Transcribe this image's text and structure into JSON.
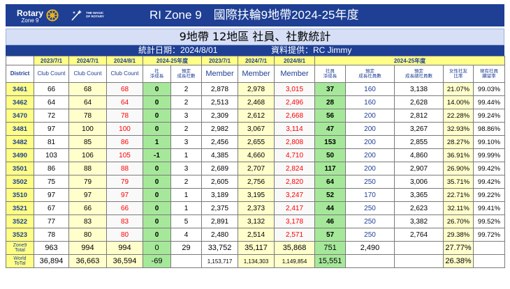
{
  "banner": {
    "rotary": "Rotary",
    "zone": "Zone 9",
    "magic_line1": "THE MAGIC",
    "magic_line2": "OF ROTARY",
    "title": "RI Zone 9　國際扶輪9地帶2024-25年度"
  },
  "subtitle": "9地帶 12地區 社員、社數統計",
  "info": {
    "stat_date": "統計日期：2024/8/01",
    "provider": "資料提供：RC Jimmy"
  },
  "header1": {
    "d1": "2023/7/1",
    "d2": "2024/7/1",
    "d3": "2024/8/1",
    "fy_club": "2024-25年度",
    "m1": "2023/7/1",
    "m2": "2024/7/1",
    "m3": "2024/8/1",
    "fy_member": "2024-25年度"
  },
  "header2": {
    "district": "District",
    "club_count1": "Club Count",
    "club_count2": "Club Count",
    "club_count3": "Club Count",
    "club_net_a": "社",
    "club_net_b": "淨成長",
    "club_target_a": "預定",
    "club_target_b": "成長社數",
    "member1": "Member",
    "member2": "Member",
    "member3": "Member",
    "member_net_a": "社員",
    "member_net_b": "淨成長",
    "member_target_a": "預定",
    "member_target_b": "成長社員數",
    "member_total_target_a": "預定",
    "member_total_target_b": "成長總社員數",
    "female_ratio_a": "女性社友",
    "female_ratio_b": "比率",
    "retention_a": "現有社員",
    "retention_b": "續留率"
  },
  "rows": [
    {
      "district": "3461",
      "c1": "66",
      "c2": "68",
      "c3": "68",
      "cnet": "0",
      "ctarget": "2",
      "m1": "2,878",
      "m2": "2,978",
      "m3": "3,015",
      "mnet": "37",
      "mtarget": "160",
      "mtotal": "3,138",
      "female": "21.07%",
      "retention": "99.03%"
    },
    {
      "district": "3462",
      "c1": "64",
      "c2": "64",
      "c3": "64",
      "cnet": "0",
      "ctarget": "2",
      "m1": "2,513",
      "m2": "2,468",
      "m3": "2,496",
      "mnet": "28",
      "mtarget": "160",
      "mtotal": "2,628",
      "female": "14.00%",
      "retention": "99.44%"
    },
    {
      "district": "3470",
      "c1": "72",
      "c2": "78",
      "c3": "78",
      "cnet": "0",
      "ctarget": "3",
      "m1": "2,309",
      "m2": "2,612",
      "m3": "2,668",
      "mnet": "56",
      "mtarget": "200",
      "mtotal": "2,812",
      "female": "22.28%",
      "retention": "99.24%"
    },
    {
      "district": "3481",
      "c1": "97",
      "c2": "100",
      "c3": "100",
      "cnet": "0",
      "ctarget": "2",
      "m1": "2,982",
      "m2": "3,067",
      "m3": "3,114",
      "mnet": "47",
      "mtarget": "200",
      "mtotal": "3,267",
      "female": "32.93%",
      "retention": "98.86%"
    },
    {
      "district": "3482",
      "c1": "81",
      "c2": "85",
      "c3": "86",
      "cnet": "1",
      "ctarget": "3",
      "m1": "2,456",
      "m2": "2,655",
      "m3": "2,808",
      "mnet": "153",
      "mtarget": "200",
      "mtotal": "2,855",
      "female": "28.27%",
      "retention": "99.10%"
    },
    {
      "district": "3490",
      "c1": "103",
      "c2": "106",
      "c3": "105",
      "cnet": "-1",
      "ctarget": "1",
      "m1": "4,385",
      "m2": "4,660",
      "m3": "4,710",
      "mnet": "50",
      "mtarget": "200",
      "mtotal": "4,860",
      "female": "36.91%",
      "retention": "99.99%"
    },
    {
      "district": "3501",
      "c1": "86",
      "c2": "88",
      "c3": "88",
      "cnet": "0",
      "ctarget": "3",
      "m1": "2,689",
      "m2": "2,707",
      "m3": "2,824",
      "mnet": "117",
      "mtarget": "200",
      "mtotal": "2,907",
      "female": "26.90%",
      "retention": "99.42%"
    },
    {
      "district": "3502",
      "c1": "75",
      "c2": "79",
      "c3": "79",
      "cnet": "0",
      "ctarget": "2",
      "m1": "2,605",
      "m2": "2,756",
      "m3": "2,820",
      "mnet": "64",
      "mtarget": "250",
      "mtotal": "3,006",
      "female": "35.71%",
      "retention": "99.42%"
    },
    {
      "district": "3510",
      "c1": "97",
      "c2": "97",
      "c3": "97",
      "cnet": "0",
      "ctarget": "1",
      "m1": "3,189",
      "m2": "3,195",
      "m3": "3,247",
      "mnet": "52",
      "mtarget": "170",
      "mtotal": "3,365",
      "female": "22.71%",
      "retention": "99.22%"
    },
    {
      "district": "3521",
      "c1": "67",
      "c2": "66",
      "c3": "66",
      "cnet": "0",
      "ctarget": "1",
      "m1": "2,375",
      "m2": "2,373",
      "m3": "2,417",
      "mnet": "44",
      "mtarget": "250",
      "mtotal": "2,623",
      "female": "32.11%",
      "retention": "99.41%"
    },
    {
      "district": "3522",
      "c1": "77",
      "c2": "83",
      "c3": "83",
      "cnet": "0",
      "ctarget": "5",
      "m1": "2,891",
      "m2": "3,132",
      "m3": "3,178",
      "mnet": "46",
      "mtarget": "250",
      "mtotal": "3,382",
      "female": "26.70%",
      "retention": "99.52%"
    },
    {
      "district": "3523",
      "c1": "78",
      "c2": "80",
      "c3": "80",
      "cnet": "0",
      "ctarget": "4",
      "m1": "2,480",
      "m2": "2,514",
      "m3": "2,571",
      "mnet": "57",
      "mtarget": "250",
      "mtotal": "2,764",
      "female": "29.38%",
      "retention": "99.72%"
    }
  ],
  "zone_total": {
    "label1": "Zone9",
    "label2": "Total",
    "c1": "963",
    "c2": "994",
    "c3": "994",
    "cnet": "0",
    "ctarget": "29",
    "m1": "33,752",
    "m2": "35,117",
    "m3": "35,868",
    "mnet": "751",
    "mtarget": "2,490",
    "female": "27.77%"
  },
  "world_total": {
    "label1": "World",
    "label2": "ToTal",
    "c1": "36,894",
    "c2": "36,663",
    "c3": "36,594",
    "cnet": "-69",
    "m1": "1,153,717",
    "m2": "1,134,303",
    "m3": "1,149,854",
    "mnet": "15,551",
    "female": "26.38%"
  },
  "colors": {
    "banner_blue": "#1e3f94",
    "highlight_yellow": "#ffff88",
    "value_red": "#ff0000",
    "net_green": "#a6e89a"
  }
}
